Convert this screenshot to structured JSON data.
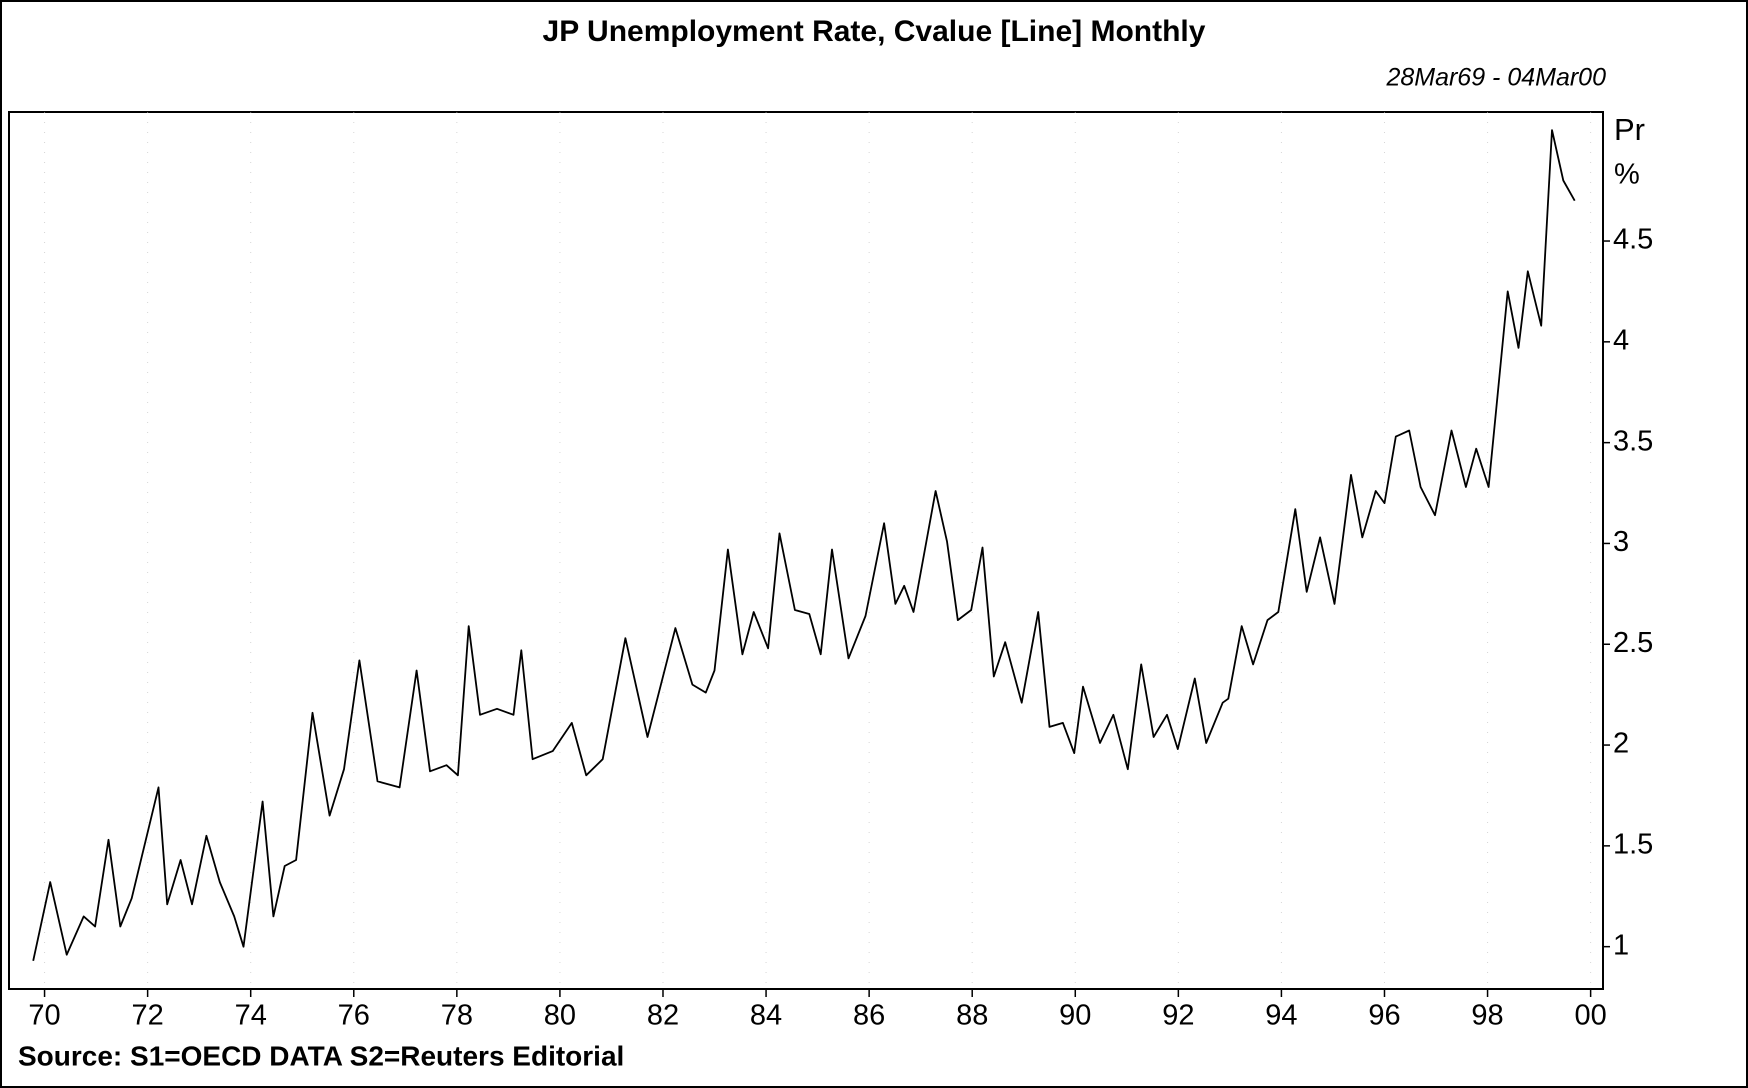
{
  "chart_data": {
    "type": "line",
    "title": "JP Unemployment Rate, Cvalue [Line] Monthly",
    "subtitle": "28Mar69 - 04Mar00",
    "y_unit_labels": [
      "Pr",
      "%"
    ],
    "source": "Source: S1=OECD DATA S2=Reuters Editorial",
    "color": "#000000",
    "grid": true,
    "xlim": [
      1969.31,
      2000.24
    ],
    "ylim": [
      0.79,
      5.14
    ],
    "xticks": [
      {
        "value": 1970,
        "label": "70"
      },
      {
        "value": 1972,
        "label": "72"
      },
      {
        "value": 1974,
        "label": "74"
      },
      {
        "value": 1976,
        "label": "76"
      },
      {
        "value": 1978,
        "label": "78"
      },
      {
        "value": 1980,
        "label": "80"
      },
      {
        "value": 1982,
        "label": "82"
      },
      {
        "value": 1984,
        "label": "84"
      },
      {
        "value": 1986,
        "label": "86"
      },
      {
        "value": 1988,
        "label": "88"
      },
      {
        "value": 1990,
        "label": "90"
      },
      {
        "value": 1992,
        "label": "92"
      },
      {
        "value": 1994,
        "label": "94"
      },
      {
        "value": 1996,
        "label": "96"
      },
      {
        "value": 1998,
        "label": "98"
      },
      {
        "value": 2000,
        "label": "00"
      }
    ],
    "yticks": [
      1,
      1.5,
      2,
      2.5,
      3,
      3.5,
      4,
      4.5
    ],
    "x": [
      1969.78,
      1970.11,
      1970.43,
      1970.76,
      1970.98,
      1971.24,
      1971.47,
      1971.69,
      1972.21,
      1972.38,
      1972.64,
      1972.86,
      1973.14,
      1973.4,
      1973.68,
      1973.86,
      1974.23,
      1974.44,
      1974.66,
      1974.88,
      1975.2,
      1975.53,
      1975.81,
      1976.11,
      1976.46,
      1976.89,
      1977.22,
      1977.48,
      1977.8,
      1978.02,
      1978.23,
      1978.45,
      1978.78,
      1979.1,
      1979.25,
      1979.47,
      1979.86,
      1980.23,
      1980.51,
      1980.83,
      1981.27,
      1981.7,
      1982.24,
      1982.57,
      1982.83,
      1983.0,
      1983.26,
      1983.54,
      1983.76,
      1984.04,
      1984.26,
      1984.56,
      1984.84,
      1985.06,
      1985.28,
      1985.6,
      1985.93,
      1986.29,
      1986.51,
      1986.68,
      1986.86,
      1987.29,
      1987.51,
      1987.72,
      1987.98,
      1988.2,
      1988.42,
      1988.64,
      1988.96,
      1989.28,
      1989.5,
      1989.76,
      1989.98,
      1990.15,
      1990.48,
      1990.74,
      1991.02,
      1991.28,
      1991.52,
      1991.78,
      1991.99,
      1992.32,
      1992.54,
      1992.86,
      1992.97,
      1993.23,
      1993.45,
      1993.73,
      1993.94,
      1994.27,
      1994.49,
      1994.75,
      1995.03,
      1995.35,
      1995.57,
      1995.83,
      1996.0,
      1996.22,
      1996.48,
      1996.7,
      1996.98,
      1997.3,
      1997.58,
      1997.78,
      1998.02,
      1998.17,
      1998.39,
      1998.6,
      1998.78,
      1999.04,
      1999.25,
      1999.47,
      1999.69
    ],
    "values": [
      0.93,
      1.32,
      0.96,
      1.15,
      1.1,
      1.53,
      1.1,
      1.24,
      1.79,
      1.21,
      1.43,
      1.21,
      1.55,
      1.32,
      1.15,
      1.0,
      1.72,
      1.15,
      1.4,
      1.43,
      2.16,
      1.65,
      1.88,
      2.42,
      1.82,
      1.79,
      2.37,
      1.87,
      1.9,
      1.85,
      2.59,
      2.15,
      2.18,
      2.15,
      2.47,
      1.93,
      1.97,
      2.11,
      1.85,
      1.93,
      2.53,
      2.04,
      2.58,
      2.3,
      2.26,
      2.37,
      2.97,
      2.45,
      2.66,
      2.48,
      3.05,
      2.67,
      2.65,
      2.45,
      2.97,
      2.43,
      2.64,
      3.1,
      2.7,
      2.79,
      2.66,
      3.26,
      3.01,
      2.62,
      2.67,
      2.98,
      2.34,
      2.51,
      2.21,
      2.66,
      2.09,
      2.11,
      1.96,
      2.29,
      2.01,
      2.15,
      1.88,
      2.4,
      2.04,
      2.15,
      1.98,
      2.33,
      2.01,
      2.21,
      2.23,
      2.59,
      2.4,
      2.62,
      2.66,
      3.17,
      2.76,
      3.03,
      2.7,
      3.34,
      3.03,
      3.26,
      3.2,
      3.53,
      3.56,
      3.28,
      3.14,
      3.56,
      3.28,
      3.47,
      3.28,
      3.67,
      4.25,
      3.97,
      4.35,
      4.08,
      5.05,
      4.8,
      4.7
    ]
  }
}
